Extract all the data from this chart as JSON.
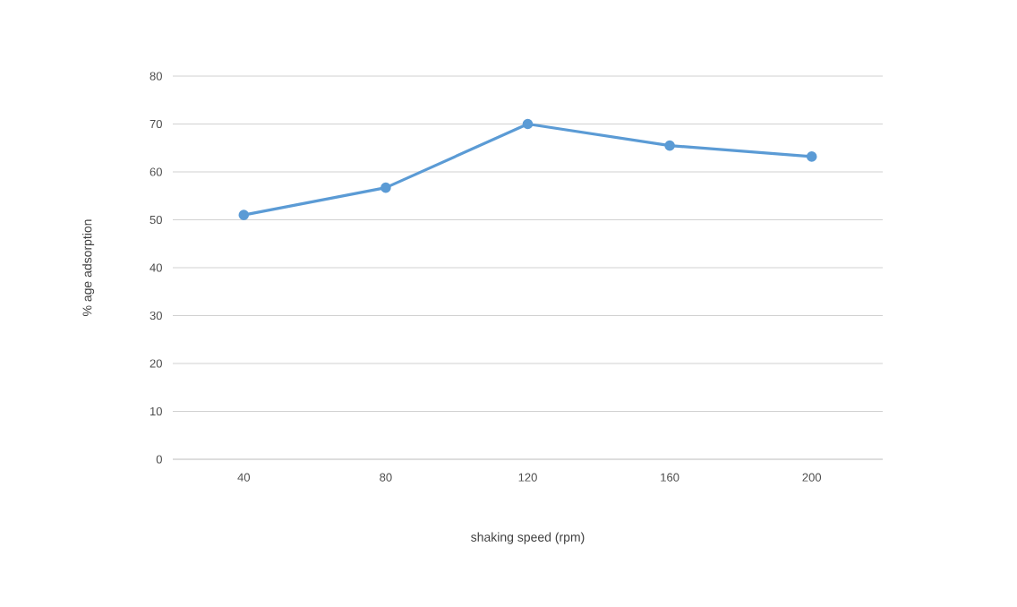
{
  "chart_data": {
    "type": "line",
    "xlabel": "shaking speed (rpm)",
    "ylabel": "% age adsorption",
    "categories": [
      "40",
      "80",
      "120",
      "160",
      "200"
    ],
    "series": [
      {
        "color": "#5b9bd5",
        "values": [
          51.0,
          56.7,
          70.0,
          65.5,
          63.2
        ]
      }
    ],
    "ylim": [
      0,
      80
    ],
    "yticks": [
      0,
      10,
      20,
      30,
      40,
      50,
      60,
      70,
      80
    ],
    "grid": "y",
    "marker": "circle",
    "line_style": "solid"
  }
}
